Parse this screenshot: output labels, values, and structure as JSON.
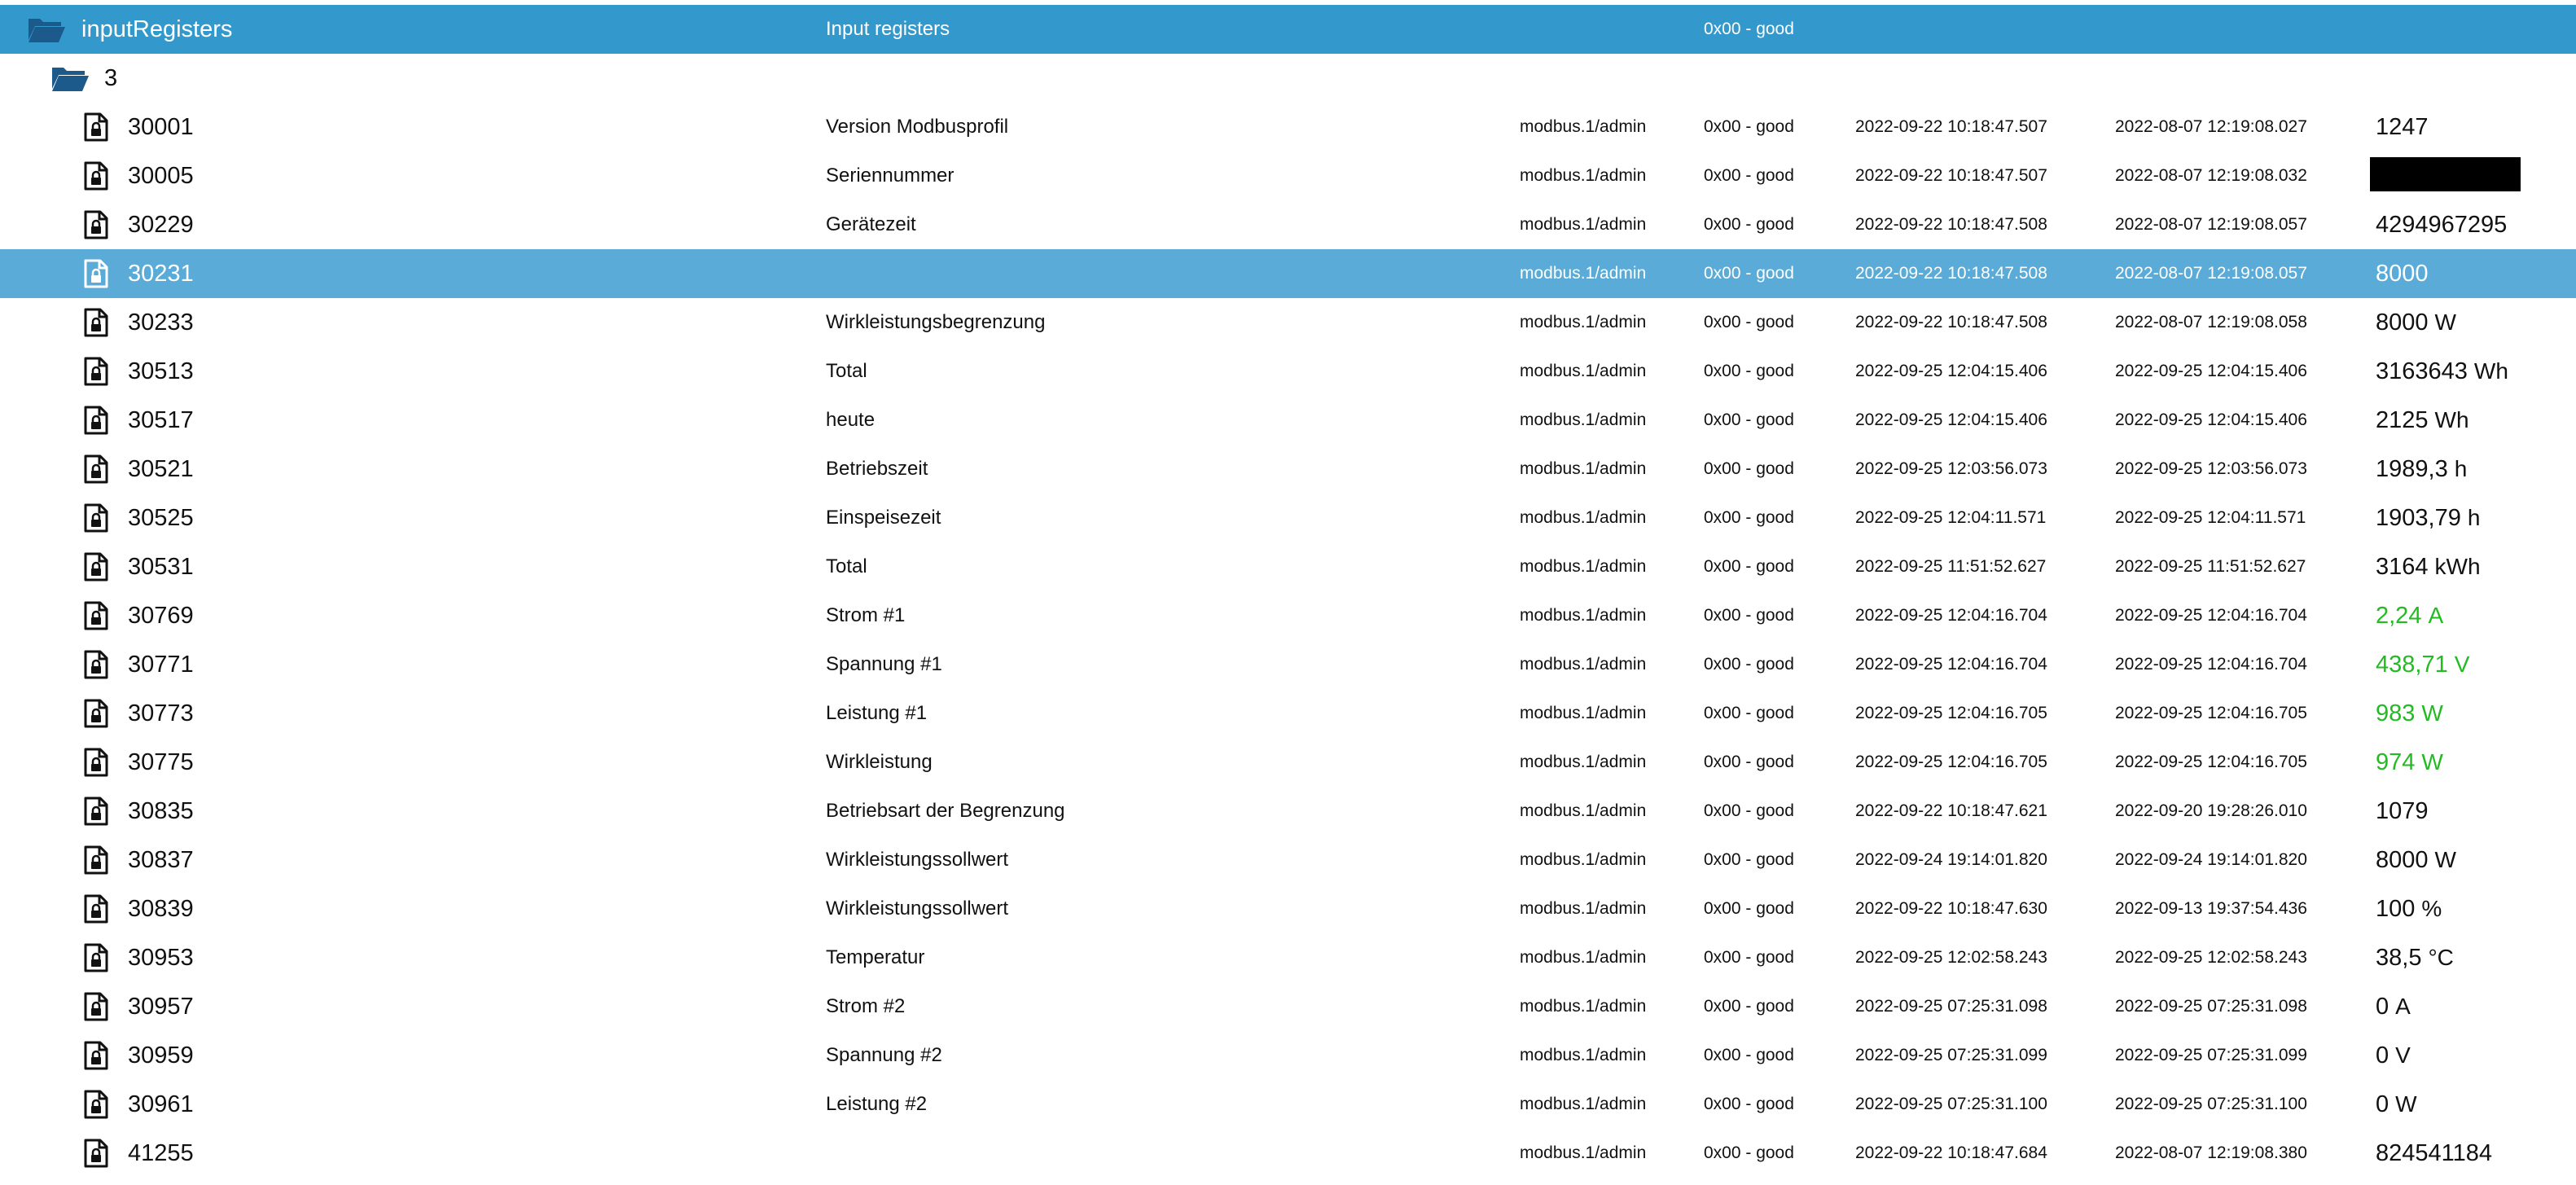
{
  "colors": {
    "root_row_bg": "#3399cc",
    "selected_row_bg": "#5aabd7",
    "folder_icon": "#1c5a8c",
    "good_value": "#22bb22"
  },
  "root": {
    "icon": "folder-open-icon",
    "name": "inputRegisters",
    "description": "Input registers",
    "status": "0x00 - good"
  },
  "subfolder": {
    "icon": "folder-open-icon",
    "name": "3"
  },
  "rows": [
    {
      "id": "30001",
      "desc": "Version Modbusprofil",
      "user": "modbus.1/admin",
      "status": "0x00 - good",
      "ts1": "2022-09-22 10:18:47.507",
      "ts2": "2022-08-07 12:19:08.027",
      "value": "1247",
      "unit": "",
      "redacted": false,
      "selected": false,
      "green": false
    },
    {
      "id": "30005",
      "desc": "Seriennummer",
      "user": "modbus.1/admin",
      "status": "0x00 - good",
      "ts1": "2022-09-22 10:18:47.507",
      "ts2": "2022-08-07 12:19:08.032",
      "value": "",
      "unit": "",
      "redacted": true,
      "selected": false,
      "green": false
    },
    {
      "id": "30229",
      "desc": "Gerätezeit",
      "user": "modbus.1/admin",
      "status": "0x00 - good",
      "ts1": "2022-09-22 10:18:47.508",
      "ts2": "2022-08-07 12:19:08.057",
      "value": "4294967295",
      "unit": "",
      "redacted": false,
      "selected": false,
      "green": false
    },
    {
      "id": "30231",
      "desc": "",
      "user": "modbus.1/admin",
      "status": "0x00 - good",
      "ts1": "2022-09-22 10:18:47.508",
      "ts2": "2022-08-07 12:19:08.057",
      "value": "8000",
      "unit": "",
      "redacted": false,
      "selected": true,
      "green": false
    },
    {
      "id": "30233",
      "desc": "Wirkleistungsbegrenzung",
      "user": "modbus.1/admin",
      "status": "0x00 - good",
      "ts1": "2022-09-22 10:18:47.508",
      "ts2": "2022-08-07 12:19:08.058",
      "value": "8000",
      "unit": "W",
      "redacted": false,
      "selected": false,
      "green": false
    },
    {
      "id": "30513",
      "desc": "Total",
      "user": "modbus.1/admin",
      "status": "0x00 - good",
      "ts1": "2022-09-25 12:04:15.406",
      "ts2": "2022-09-25 12:04:15.406",
      "value": "3163643",
      "unit": "Wh",
      "redacted": false,
      "selected": false,
      "green": false
    },
    {
      "id": "30517",
      "desc": "heute",
      "user": "modbus.1/admin",
      "status": "0x00 - good",
      "ts1": "2022-09-25 12:04:15.406",
      "ts2": "2022-09-25 12:04:15.406",
      "value": "2125",
      "unit": "Wh",
      "redacted": false,
      "selected": false,
      "green": false
    },
    {
      "id": "30521",
      "desc": "Betriebszeit",
      "user": "modbus.1/admin",
      "status": "0x00 - good",
      "ts1": "2022-09-25 12:03:56.073",
      "ts2": "2022-09-25 12:03:56.073",
      "value": "1989,3",
      "unit": "h",
      "redacted": false,
      "selected": false,
      "green": false
    },
    {
      "id": "30525",
      "desc": "Einspeisezeit",
      "user": "modbus.1/admin",
      "status": "0x00 - good",
      "ts1": "2022-09-25 12:04:11.571",
      "ts2": "2022-09-25 12:04:11.571",
      "value": "1903,79",
      "unit": "h",
      "redacted": false,
      "selected": false,
      "green": false
    },
    {
      "id": "30531",
      "desc": "Total",
      "user": "modbus.1/admin",
      "status": "0x00 - good",
      "ts1": "2022-09-25 11:51:52.627",
      "ts2": "2022-09-25 11:51:52.627",
      "value": "3164",
      "unit": "kWh",
      "redacted": false,
      "selected": false,
      "green": false
    },
    {
      "id": "30769",
      "desc": "Strom #1",
      "user": "modbus.1/admin",
      "status": "0x00 - good",
      "ts1": "2022-09-25 12:04:16.704",
      "ts2": "2022-09-25 12:04:16.704",
      "value": "2,24",
      "unit": "A",
      "redacted": false,
      "selected": false,
      "green": true
    },
    {
      "id": "30771",
      "desc": "Spannung #1",
      "user": "modbus.1/admin",
      "status": "0x00 - good",
      "ts1": "2022-09-25 12:04:16.704",
      "ts2": "2022-09-25 12:04:16.704",
      "value": "438,71",
      "unit": "V",
      "redacted": false,
      "selected": false,
      "green": true
    },
    {
      "id": "30773",
      "desc": "Leistung #1",
      "user": "modbus.1/admin",
      "status": "0x00 - good",
      "ts1": "2022-09-25 12:04:16.705",
      "ts2": "2022-09-25 12:04:16.705",
      "value": "983",
      "unit": "W",
      "redacted": false,
      "selected": false,
      "green": true
    },
    {
      "id": "30775",
      "desc": "Wirkleistung",
      "user": "modbus.1/admin",
      "status": "0x00 - good",
      "ts1": "2022-09-25 12:04:16.705",
      "ts2": "2022-09-25 12:04:16.705",
      "value": "974",
      "unit": "W",
      "redacted": false,
      "selected": false,
      "green": true
    },
    {
      "id": "30835",
      "desc": "Betriebsart der Begrenzung",
      "user": "modbus.1/admin",
      "status": "0x00 - good",
      "ts1": "2022-09-22 10:18:47.621",
      "ts2": "2022-09-20 19:28:26.010",
      "value": "1079",
      "unit": "",
      "redacted": false,
      "selected": false,
      "green": false
    },
    {
      "id": "30837",
      "desc": "Wirkleistungssollwert",
      "user": "modbus.1/admin",
      "status": "0x00 - good",
      "ts1": "2022-09-24 19:14:01.820",
      "ts2": "2022-09-24 19:14:01.820",
      "value": "8000",
      "unit": "W",
      "redacted": false,
      "selected": false,
      "green": false
    },
    {
      "id": "30839",
      "desc": "Wirkleistungssollwert",
      "user": "modbus.1/admin",
      "status": "0x00 - good",
      "ts1": "2022-09-22 10:18:47.630",
      "ts2": "2022-09-13 19:37:54.436",
      "value": "100",
      "unit": "%",
      "redacted": false,
      "selected": false,
      "green": false
    },
    {
      "id": "30953",
      "desc": "Temperatur",
      "user": "modbus.1/admin",
      "status": "0x00 - good",
      "ts1": "2022-09-25 12:02:58.243",
      "ts2": "2022-09-25 12:02:58.243",
      "value": "38,5",
      "unit": "°C",
      "redacted": false,
      "selected": false,
      "green": false
    },
    {
      "id": "30957",
      "desc": "Strom #2",
      "user": "modbus.1/admin",
      "status": "0x00 - good",
      "ts1": "2022-09-25 07:25:31.098",
      "ts2": "2022-09-25 07:25:31.098",
      "value": "0",
      "unit": "A",
      "redacted": false,
      "selected": false,
      "green": false
    },
    {
      "id": "30959",
      "desc": "Spannung #2",
      "user": "modbus.1/admin",
      "status": "0x00 - good",
      "ts1": "2022-09-25 07:25:31.099",
      "ts2": "2022-09-25 07:25:31.099",
      "value": "0",
      "unit": "V",
      "redacted": false,
      "selected": false,
      "green": false
    },
    {
      "id": "30961",
      "desc": "Leistung #2",
      "user": "modbus.1/admin",
      "status": "0x00 - good",
      "ts1": "2022-09-25 07:25:31.100",
      "ts2": "2022-09-25 07:25:31.100",
      "value": "0",
      "unit": "W",
      "redacted": false,
      "selected": false,
      "green": false
    },
    {
      "id": "41255",
      "desc": "",
      "user": "modbus.1/admin",
      "status": "0x00 - good",
      "ts1": "2022-09-22 10:18:47.684",
      "ts2": "2022-08-07 12:19:08.380",
      "value": "824541184",
      "unit": "",
      "redacted": false,
      "selected": false,
      "green": false
    }
  ]
}
